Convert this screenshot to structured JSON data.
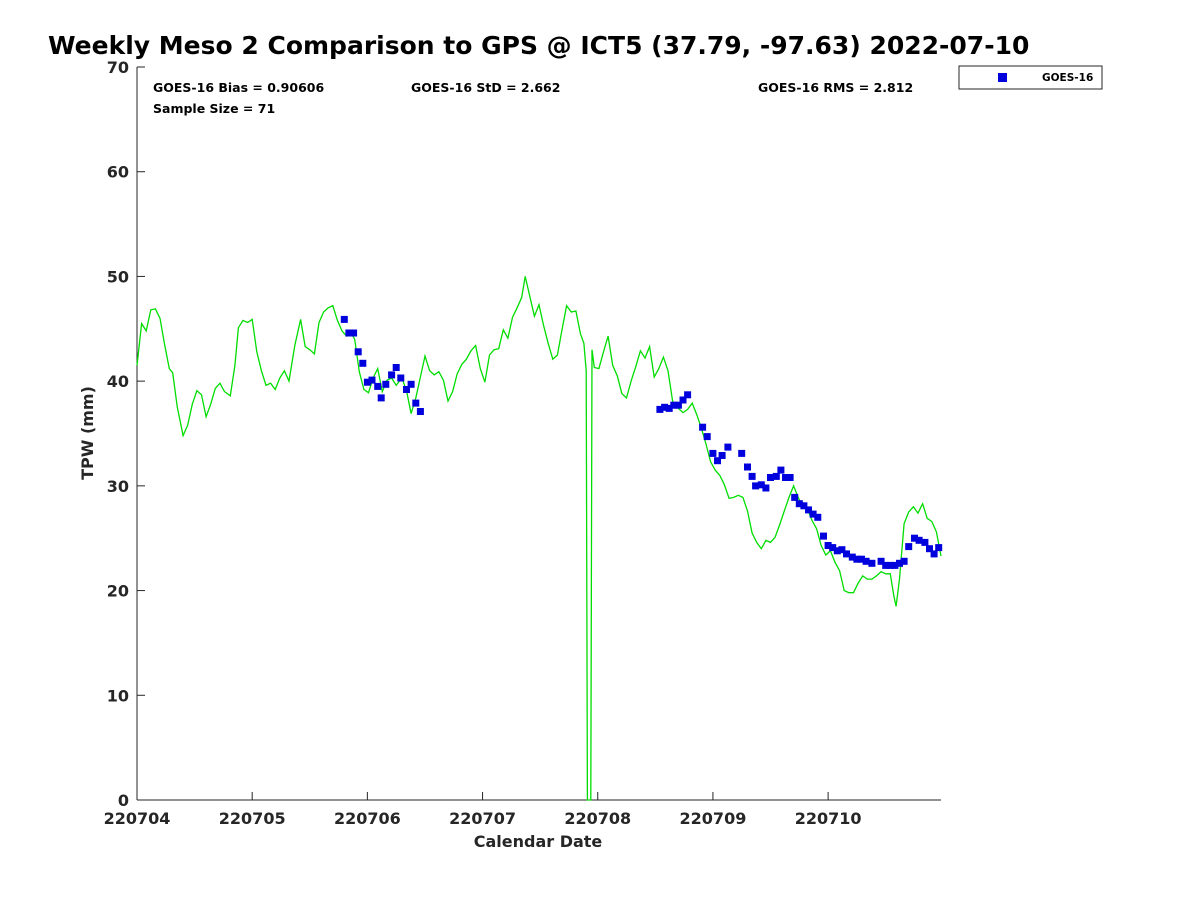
{
  "chart_data": {
    "type": "scatter",
    "title": "Weekly Meso 2 Comparison to GPS @ ICT5 (37.79, -97.63) 2022-07-10",
    "xlabel": "Calendar Date",
    "ylabel": "TPW (mm)",
    "xlim": [
      0,
      6.98
    ],
    "ylim": [
      0,
      70
    ],
    "x_ticks": [
      0,
      1,
      2,
      3,
      4,
      5,
      6
    ],
    "x_tick_labels": [
      "220704",
      "220705",
      "220706",
      "220707",
      "220708",
      "220709",
      "220710"
    ],
    "y_ticks": [
      0,
      10,
      20,
      30,
      40,
      50,
      60,
      70
    ],
    "y_tick_labels": [
      "0",
      "10",
      "20",
      "30",
      "40",
      "50",
      "60",
      "70"
    ],
    "grid": false,
    "legend_position": "top-right",
    "stats": {
      "bias": "GOES-16 Bias = 0.90606",
      "std": "GOES-16 StD = 2.662",
      "rms": "GOES-16 RMS = 2.812",
      "sample": "Sample Size = 71"
    },
    "series": [
      {
        "name": "GOES-16",
        "kind": "scatter",
        "color": "#0000dd",
        "marker": "square",
        "points": [
          [
            1.8,
            45.9
          ],
          [
            1.84,
            44.6
          ],
          [
            1.88,
            44.6
          ],
          [
            1.92,
            42.8
          ],
          [
            1.96,
            41.7
          ],
          [
            2.0,
            39.9
          ],
          [
            2.04,
            40.1
          ],
          [
            2.09,
            39.5
          ],
          [
            2.12,
            38.4
          ],
          [
            2.16,
            39.7
          ],
          [
            2.21,
            40.6
          ],
          [
            2.25,
            41.3
          ],
          [
            2.29,
            40.3
          ],
          [
            2.34,
            39.2
          ],
          [
            2.38,
            39.7
          ],
          [
            2.42,
            37.9
          ],
          [
            2.46,
            37.1
          ],
          [
            4.54,
            37.3
          ],
          [
            4.58,
            37.5
          ],
          [
            4.62,
            37.4
          ],
          [
            4.66,
            37.7
          ],
          [
            4.7,
            37.7
          ],
          [
            4.74,
            38.2
          ],
          [
            4.78,
            38.7
          ],
          [
            4.91,
            35.6
          ],
          [
            4.95,
            34.7
          ],
          [
            5.0,
            33.1
          ],
          [
            5.04,
            32.4
          ],
          [
            5.08,
            32.9
          ],
          [
            5.13,
            33.7
          ],
          [
            5.25,
            33.1
          ],
          [
            5.3,
            31.8
          ],
          [
            5.34,
            30.9
          ],
          [
            5.37,
            30.0
          ],
          [
            5.42,
            30.1
          ],
          [
            5.46,
            29.8
          ],
          [
            5.5,
            30.8
          ],
          [
            5.55,
            30.9
          ],
          [
            5.59,
            31.5
          ],
          [
            5.63,
            30.8
          ],
          [
            5.67,
            30.8
          ],
          [
            5.71,
            28.9
          ],
          [
            5.75,
            28.3
          ],
          [
            5.79,
            28.1
          ],
          [
            5.83,
            27.7
          ],
          [
            5.87,
            27.3
          ],
          [
            5.91,
            27.0
          ],
          [
            5.96,
            25.2
          ],
          [
            6.0,
            24.3
          ],
          [
            6.04,
            24.1
          ],
          [
            6.08,
            23.8
          ],
          [
            6.12,
            23.9
          ],
          [
            6.16,
            23.5
          ],
          [
            6.21,
            23.2
          ],
          [
            6.25,
            23.0
          ],
          [
            6.29,
            23.0
          ],
          [
            6.33,
            22.8
          ],
          [
            6.38,
            22.6
          ],
          [
            6.46,
            22.8
          ],
          [
            6.5,
            22.4
          ],
          [
            6.54,
            22.4
          ],
          [
            6.58,
            22.4
          ],
          [
            6.62,
            22.6
          ],
          [
            6.66,
            22.8
          ],
          [
            6.7,
            24.2
          ],
          [
            6.75,
            25.0
          ],
          [
            6.79,
            24.8
          ],
          [
            6.84,
            24.6
          ],
          [
            6.88,
            24.0
          ],
          [
            6.92,
            23.5
          ],
          [
            6.96,
            24.1
          ]
        ]
      },
      {
        "name": "",
        "kind": "line",
        "color": "#00dd00",
        "points": [
          [
            0.0,
            41.5
          ],
          [
            0.04,
            45.5
          ],
          [
            0.08,
            44.8
          ],
          [
            0.12,
            46.8
          ],
          [
            0.16,
            46.9
          ],
          [
            0.2,
            46.0
          ],
          [
            0.24,
            43.5
          ],
          [
            0.28,
            41.2
          ],
          [
            0.31,
            40.8
          ],
          [
            0.35,
            37.5
          ],
          [
            0.4,
            34.8
          ],
          [
            0.44,
            35.8
          ],
          [
            0.48,
            37.8
          ],
          [
            0.52,
            39.1
          ],
          [
            0.56,
            38.7
          ],
          [
            0.6,
            36.6
          ],
          [
            0.64,
            37.8
          ],
          [
            0.68,
            39.3
          ],
          [
            0.72,
            39.8
          ],
          [
            0.76,
            39.0
          ],
          [
            0.81,
            38.6
          ],
          [
            0.85,
            41.5
          ],
          [
            0.88,
            45.1
          ],
          [
            0.92,
            45.8
          ],
          [
            0.96,
            45.6
          ],
          [
            1.0,
            45.9
          ],
          [
            1.04,
            42.8
          ],
          [
            1.08,
            41.0
          ],
          [
            1.12,
            39.6
          ],
          [
            1.16,
            39.8
          ],
          [
            1.2,
            39.2
          ],
          [
            1.24,
            40.3
          ],
          [
            1.28,
            41.0
          ],
          [
            1.32,
            40.0
          ],
          [
            1.37,
            43.4
          ],
          [
            1.42,
            45.9
          ],
          [
            1.46,
            43.3
          ],
          [
            1.5,
            43.0
          ],
          [
            1.54,
            42.6
          ],
          [
            1.58,
            45.6
          ],
          [
            1.62,
            46.6
          ],
          [
            1.66,
            47.0
          ],
          [
            1.7,
            47.2
          ],
          [
            1.74,
            45.8
          ],
          [
            1.78,
            44.8
          ],
          [
            1.82,
            44.3
          ],
          [
            1.86,
            44.6
          ],
          [
            1.89,
            44.0
          ],
          [
            1.93,
            40.9
          ],
          [
            1.97,
            39.2
          ],
          [
            2.01,
            38.9
          ],
          [
            2.05,
            40.3
          ],
          [
            2.09,
            41.2
          ],
          [
            2.13,
            39.0
          ],
          [
            2.17,
            40.1
          ],
          [
            2.21,
            40.3
          ],
          [
            2.25,
            39.6
          ],
          [
            2.3,
            40.3
          ],
          [
            2.34,
            39.1
          ],
          [
            2.38,
            36.9
          ],
          [
            2.42,
            38.4
          ],
          [
            2.46,
            40.4
          ],
          [
            2.5,
            42.4
          ],
          [
            2.54,
            41.0
          ],
          [
            2.58,
            40.6
          ],
          [
            2.62,
            40.9
          ],
          [
            2.66,
            40.1
          ],
          [
            2.7,
            38.1
          ],
          [
            2.74,
            39.0
          ],
          [
            2.78,
            40.7
          ],
          [
            2.82,
            41.6
          ],
          [
            2.86,
            42.1
          ],
          [
            2.9,
            42.9
          ],
          [
            2.94,
            43.4
          ],
          [
            2.98,
            41.2
          ],
          [
            3.02,
            39.9
          ],
          [
            3.06,
            42.5
          ],
          [
            3.1,
            43.0
          ],
          [
            3.14,
            43.1
          ],
          [
            3.18,
            44.9
          ],
          [
            3.22,
            44.1
          ],
          [
            3.26,
            46.1
          ],
          [
            3.3,
            47.0
          ],
          [
            3.34,
            48.0
          ],
          [
            3.37,
            50.0
          ],
          [
            3.41,
            48.1
          ],
          [
            3.45,
            46.2
          ],
          [
            3.49,
            47.3
          ],
          [
            3.53,
            45.3
          ],
          [
            3.57,
            43.6
          ],
          [
            3.61,
            42.1
          ],
          [
            3.65,
            42.5
          ],
          [
            3.69,
            44.9
          ],
          [
            3.73,
            47.2
          ],
          [
            3.77,
            46.6
          ],
          [
            3.81,
            46.7
          ],
          [
            3.85,
            44.5
          ],
          [
            3.88,
            43.6
          ],
          [
            3.9,
            41.0
          ],
          [
            3.91,
            0.0
          ],
          [
            3.94,
            0.0
          ],
          [
            3.95,
            43.0
          ],
          [
            3.97,
            41.3
          ],
          [
            4.01,
            41.2
          ],
          [
            4.05,
            42.8
          ],
          [
            4.09,
            44.3
          ],
          [
            4.13,
            41.5
          ],
          [
            4.17,
            40.5
          ],
          [
            4.21,
            38.8
          ],
          [
            4.25,
            38.4
          ],
          [
            4.29,
            40.0
          ],
          [
            4.33,
            41.4
          ],
          [
            4.37,
            42.9
          ],
          [
            4.41,
            42.2
          ],
          [
            4.45,
            43.3
          ],
          [
            4.49,
            40.4
          ],
          [
            4.53,
            41.2
          ],
          [
            4.57,
            42.3
          ],
          [
            4.61,
            41.0
          ],
          [
            4.65,
            38.1
          ],
          [
            4.7,
            37.4
          ],
          [
            4.74,
            37.0
          ],
          [
            4.78,
            37.3
          ],
          [
            4.82,
            37.9
          ],
          [
            4.86,
            36.8
          ],
          [
            4.9,
            35.5
          ],
          [
            4.94,
            34.0
          ],
          [
            4.98,
            32.3
          ],
          [
            5.02,
            31.5
          ],
          [
            5.06,
            31.0
          ],
          [
            5.1,
            30.1
          ],
          [
            5.14,
            28.8
          ],
          [
            5.18,
            28.9
          ],
          [
            5.22,
            29.1
          ],
          [
            5.26,
            28.9
          ],
          [
            5.3,
            27.6
          ],
          [
            5.34,
            25.5
          ],
          [
            5.38,
            24.6
          ],
          [
            5.42,
            24.0
          ],
          [
            5.46,
            24.8
          ],
          [
            5.5,
            24.6
          ],
          [
            5.54,
            25.1
          ],
          [
            5.58,
            26.3
          ],
          [
            5.62,
            27.6
          ],
          [
            5.66,
            28.9
          ],
          [
            5.7,
            30.0
          ],
          [
            5.74,
            28.9
          ],
          [
            5.78,
            28.0
          ],
          [
            5.82,
            27.8
          ],
          [
            5.86,
            26.7
          ],
          [
            5.9,
            25.9
          ],
          [
            5.94,
            24.3
          ],
          [
            5.98,
            23.4
          ],
          [
            6.02,
            23.8
          ],
          [
            6.06,
            22.7
          ],
          [
            6.1,
            21.9
          ],
          [
            6.14,
            20.0
          ],
          [
            6.18,
            19.8
          ],
          [
            6.22,
            19.8
          ],
          [
            6.26,
            20.7
          ],
          [
            6.3,
            21.4
          ],
          [
            6.34,
            21.1
          ],
          [
            6.38,
            21.1
          ],
          [
            6.42,
            21.4
          ],
          [
            6.46,
            21.8
          ],
          [
            6.5,
            21.6
          ],
          [
            6.54,
            21.6
          ],
          [
            6.57,
            19.5
          ],
          [
            6.59,
            18.5
          ],
          [
            6.62,
            21.1
          ],
          [
            6.66,
            26.4
          ],
          [
            6.7,
            27.5
          ],
          [
            6.74,
            28.0
          ],
          [
            6.78,
            27.4
          ],
          [
            6.82,
            28.3
          ],
          [
            6.86,
            26.9
          ],
          [
            6.9,
            26.6
          ],
          [
            6.94,
            25.6
          ],
          [
            6.98,
            23.3
          ]
        ]
      }
    ]
  }
}
